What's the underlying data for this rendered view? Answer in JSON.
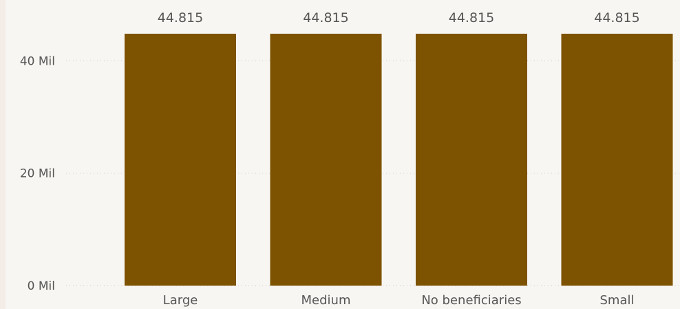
{
  "chart_data": {
    "type": "bar",
    "categories": [
      "Large",
      "Medium",
      "No beneficiaries",
      "Small"
    ],
    "values": [
      44815000,
      44815000,
      44815000,
      44815000
    ],
    "data_labels": [
      "44.815",
      "44.815",
      "44.815",
      "44.815"
    ],
    "y_ticks": [
      {
        "value": 0,
        "label": "0 Mil"
      },
      {
        "value": 20000000,
        "label": "20 Mil"
      },
      {
        "value": 40000000,
        "label": "40 Mil"
      }
    ],
    "ylim": [
      0,
      44815000
    ],
    "grid": true,
    "bar_color": "#7d5200",
    "background_color": "#f8f6f2",
    "grid_color": "#c8c8c8",
    "text_color": "#555555"
  }
}
